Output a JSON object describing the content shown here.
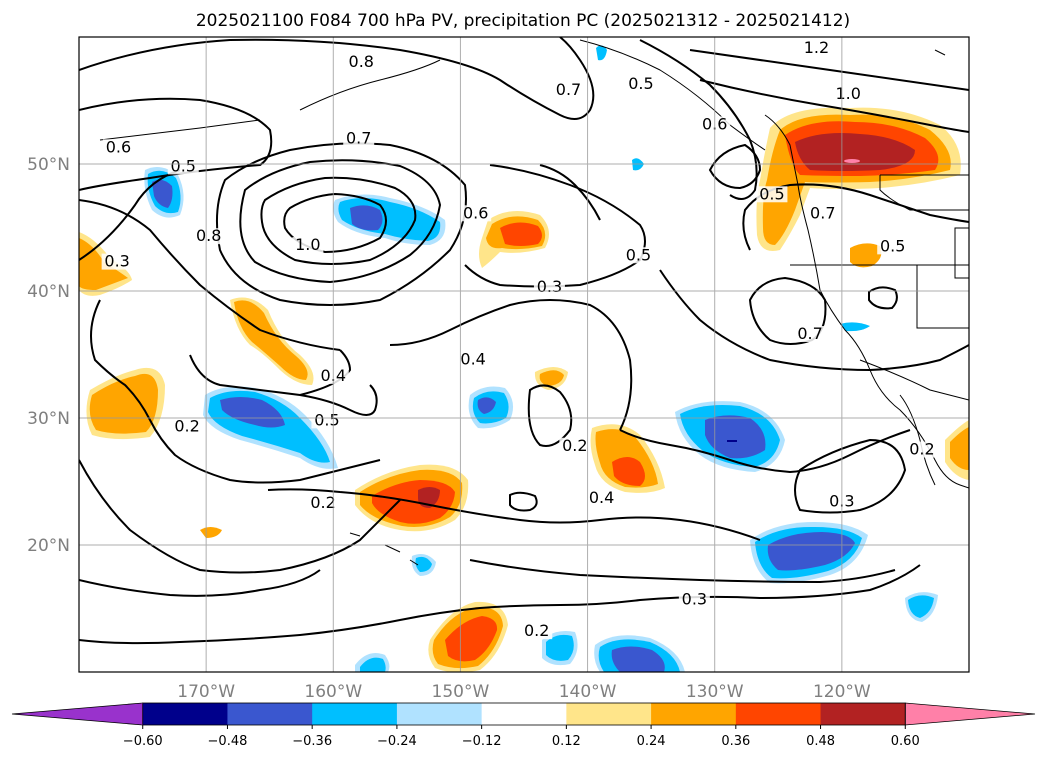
{
  "title": "2025021100 F084 700 hPa PV, precipitation PC (2025021312 - 2025021412)",
  "map": {
    "lon_range": [
      -180,
      -110
    ],
    "lat_range": [
      10,
      60
    ],
    "lon_ticks": [
      {
        "value": -170,
        "label": "170°W"
      },
      {
        "value": -160,
        "label": "160°W"
      },
      {
        "value": -150,
        "label": "150°W"
      },
      {
        "value": -140,
        "label": "140°W"
      },
      {
        "value": -130,
        "label": "130°W"
      },
      {
        "value": -120,
        "label": "120°W"
      }
    ],
    "lat_ticks": [
      {
        "value": 20,
        "label": "20°N"
      },
      {
        "value": 30,
        "label": "30°N"
      },
      {
        "value": 40,
        "label": "40°N"
      },
      {
        "value": 50,
        "label": "50°N"
      }
    ],
    "contour_labels": [
      {
        "text": "0.8",
        "lon": -157.8,
        "lat": 57.7
      },
      {
        "text": "0.7",
        "lon": -141.5,
        "lat": 55.5
      },
      {
        "text": "0.5",
        "lon": -135.8,
        "lat": 56.0
      },
      {
        "text": "1.2",
        "lon": -122.0,
        "lat": 58.8
      },
      {
        "text": "1.0",
        "lon": -119.5,
        "lat": 55.2
      },
      {
        "text": "0.6",
        "lon": -130.0,
        "lat": 52.8
      },
      {
        "text": "0.6",
        "lon": -176.9,
        "lat": 51.0
      },
      {
        "text": "0.5",
        "lon": -171.8,
        "lat": 49.5
      },
      {
        "text": "0.7",
        "lon": -158.0,
        "lat": 51.7
      },
      {
        "text": "0.8",
        "lon": -169.8,
        "lat": 44.0
      },
      {
        "text": "1.0",
        "lon": -162.0,
        "lat": 43.3
      },
      {
        "text": "0.6",
        "lon": -148.8,
        "lat": 45.8
      },
      {
        "text": "0.5",
        "lon": -136.0,
        "lat": 42.5
      },
      {
        "text": "0.5",
        "lon": -125.5,
        "lat": 47.3
      },
      {
        "text": "0.7",
        "lon": -121.5,
        "lat": 45.8
      },
      {
        "text": "0.5",
        "lon": -116.0,
        "lat": 43.2
      },
      {
        "text": "0.3",
        "lon": -177.0,
        "lat": 42.0
      },
      {
        "text": "0.3",
        "lon": -143.0,
        "lat": 40.0
      },
      {
        "text": "0.7",
        "lon": -122.5,
        "lat": 36.3
      },
      {
        "text": "0.4",
        "lon": -160.0,
        "lat": 33.0
      },
      {
        "text": "0.4",
        "lon": -149.0,
        "lat": 34.3
      },
      {
        "text": "0.5",
        "lon": -160.5,
        "lat": 29.5
      },
      {
        "text": "0.2",
        "lon": -171.5,
        "lat": 29.0
      },
      {
        "text": "0.2",
        "lon": -141.0,
        "lat": 27.5
      },
      {
        "text": "0.4",
        "lon": -138.9,
        "lat": 23.4
      },
      {
        "text": "0.2",
        "lon": -160.8,
        "lat": 23.0
      },
      {
        "text": "0.3",
        "lon": -120.0,
        "lat": 23.1
      },
      {
        "text": "0.3",
        "lon": -131.6,
        "lat": 15.4
      },
      {
        "text": "0.2",
        "lon": -144.0,
        "lat": 12.9
      },
      {
        "text": "0.2",
        "lon": -113.7,
        "lat": 27.2
      }
    ]
  },
  "colorbar": {
    "ticks": [
      "−0.60",
      "−0.48",
      "−0.36",
      "−0.24",
      "−0.12",
      "0.12",
      "0.24",
      "0.36",
      "0.48",
      "0.60"
    ],
    "colors": [
      "#9932cc",
      "#00008b",
      "#3a57cf",
      "#00bfff",
      "#b0e2ff",
      "#ffffff",
      "#ffe58a",
      "#ffa500",
      "#ff4500",
      "#b22222",
      "#ff80a8"
    ]
  }
}
